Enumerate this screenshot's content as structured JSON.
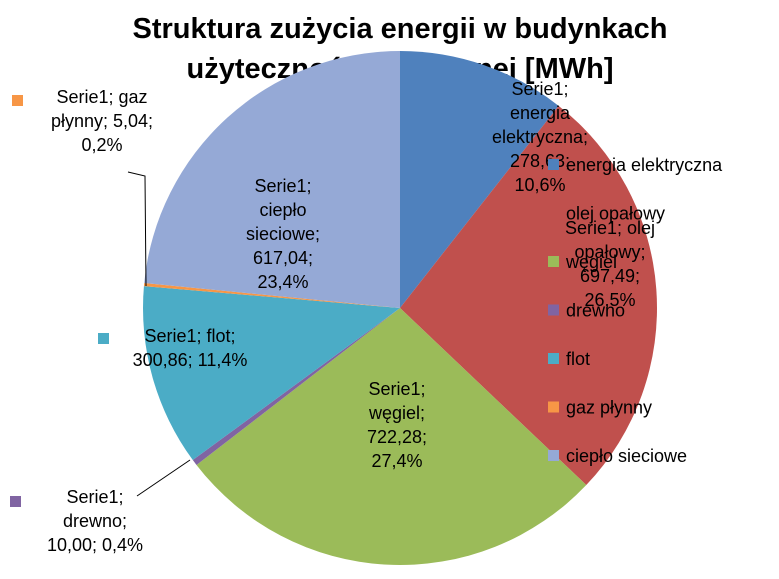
{
  "chart_data": {
    "type": "pie",
    "title": "Struktura zużycia energii w budynkach użyteczności publicznej [MWh]",
    "categories": [
      "energia elektryczna",
      "olej opałowy",
      "węgiel",
      "drewno",
      "flot",
      "gaz płynny",
      "ciepło sieciowe"
    ],
    "series": [
      {
        "name": "Serie1",
        "values": [
          278.63,
          697.49,
          722.28,
          10.0,
          300.86,
          5.04,
          617.04
        ],
        "value_labels": [
          "Serie1; energia elektryczna; 278,63; 10,6%",
          "Serie1; olej opałowy; 697,49; 26,5%",
          "Serie1; węgiel; 722,28; 27,4%",
          "Serie1; drewno; 10,00; 0,4%",
          "Serie1; flot; 300,86; 11,4%",
          "Serie1; gaz płynny; 5,04; 0,2%",
          "Serie1; ciepło sieciowe; 617,04; 23,4%"
        ],
        "colors": [
          "#4f81bd",
          "#c0504d",
          "#9bbb59",
          "#8064a2",
          "#4bacc6",
          "#f79646",
          "#95a9d6"
        ]
      }
    ],
    "legend": "right"
  }
}
